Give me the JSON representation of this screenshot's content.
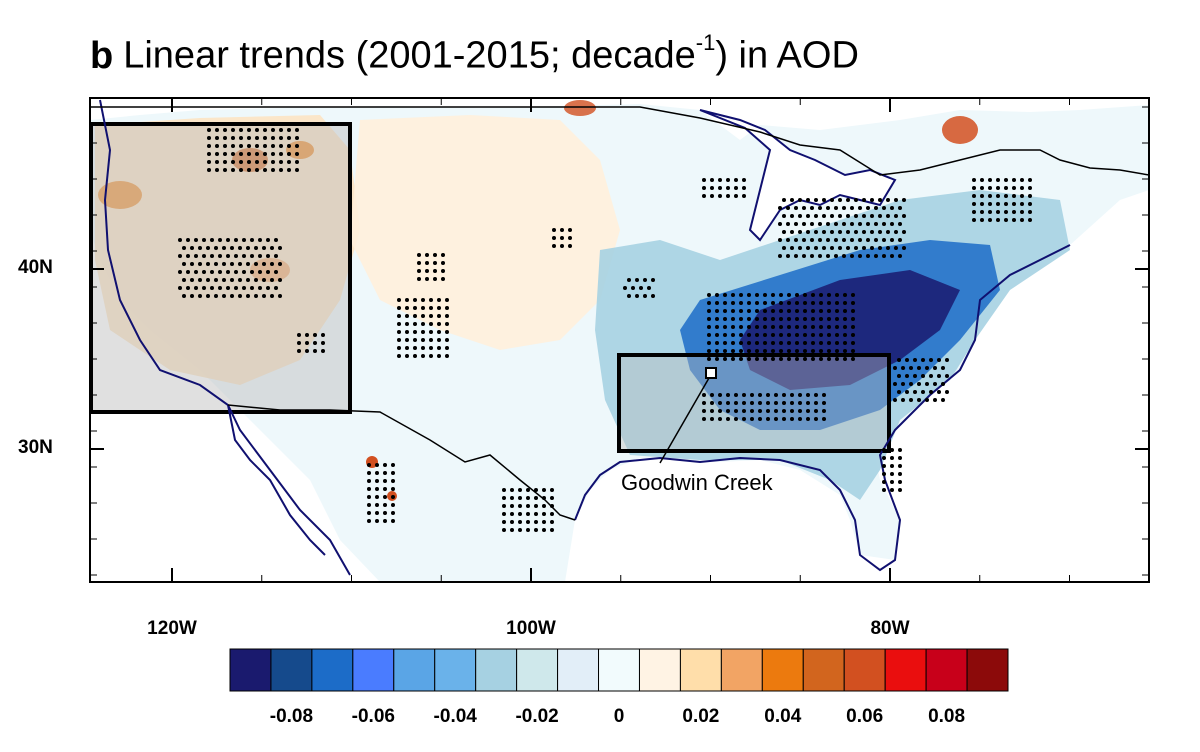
{
  "title": {
    "panel_letter": "b",
    "text_before": "Linear trends (2001-2015; decade",
    "superscript": "-1",
    "text_after": ") in AOD"
  },
  "axes": {
    "lat_ticks": [
      {
        "label": "40N",
        "value": 40
      },
      {
        "label": "30N",
        "value": 30
      }
    ],
    "lon_ticks": [
      {
        "label": "120W",
        "value": -120
      },
      {
        "label": "100W",
        "value": -100
      },
      {
        "label": "80W",
        "value": -80
      }
    ]
  },
  "site": {
    "name": "Goodwin Creek"
  },
  "colorbar": {
    "colors": [
      "#1a1a6e",
      "#154a8c",
      "#1c6cc8",
      "#4a7cff",
      "#5aa5e6",
      "#6ab2ea",
      "#a6d1e2",
      "#cfe8eb",
      "#e2eef8",
      "#f2fbfd",
      "#fff3e4",
      "#ffdeaa",
      "#f2a464",
      "#ec7a0e",
      "#d2651e",
      "#d25020",
      "#ea0e0e",
      "#c8001a",
      "#8c0a0a"
    ],
    "tick_labels": [
      "-0.08",
      "-0.06",
      "-0.04",
      "-0.02",
      "0",
      "0.02",
      "0.04",
      "0.06",
      "0.08"
    ],
    "tick_values": [
      -0.08,
      -0.06,
      -0.04,
      -0.02,
      0,
      0.02,
      0.04,
      0.06,
      0.08
    ]
  },
  "regions": [
    {
      "name": "Western US box",
      "lon_min": -124.5,
      "lon_max": -110,
      "lat_min": 32,
      "lat_max": 48
    },
    {
      "name": "Southeastern US box",
      "lon_min": -95,
      "lon_max": -80,
      "lat_min": 30,
      "lat_max": 35.2
    }
  ],
  "colors": {
    "coast": "#101070",
    "border": "#000000",
    "box_fill": "#bbbbbb"
  }
}
